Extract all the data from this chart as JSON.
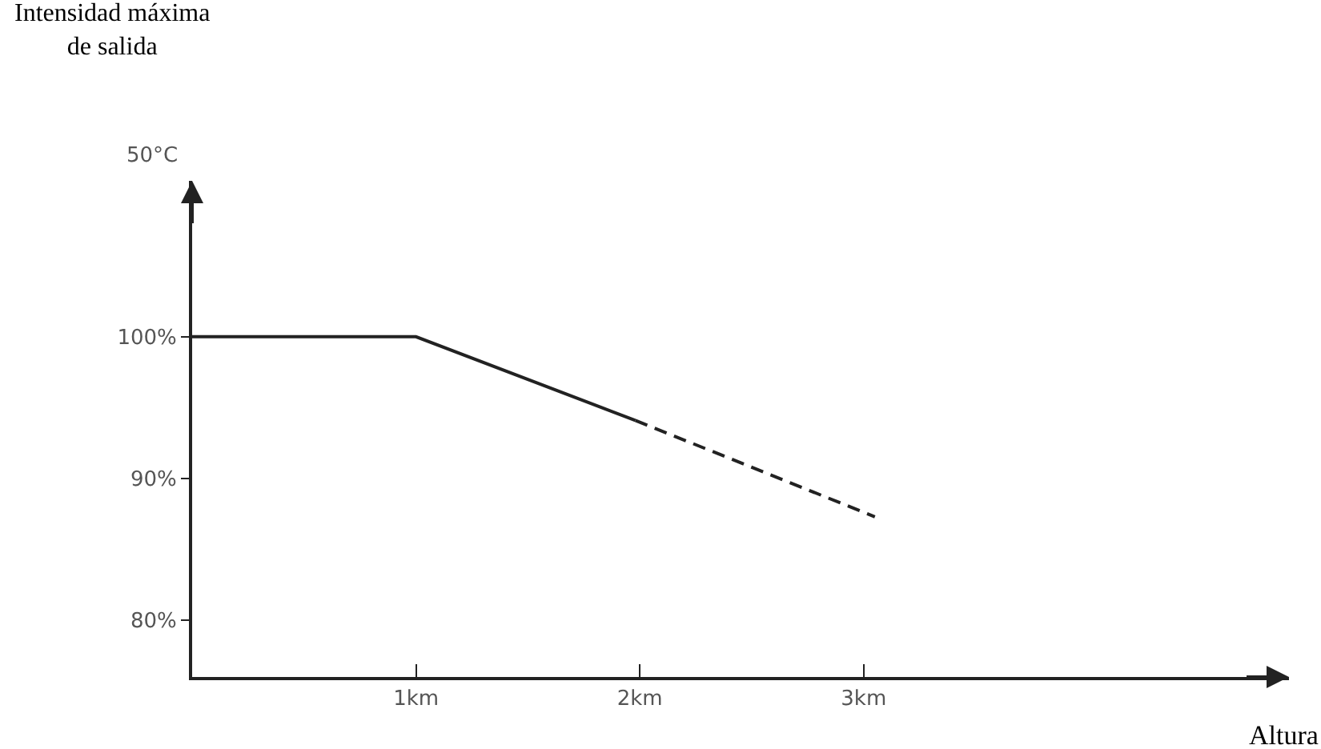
{
  "chart_data": {
    "type": "line",
    "xlabel": "Altura",
    "ylabel": "Intensidad máxima de salida",
    "series": [
      {
        "color": "#222222",
        "line_style": "solid",
        "x": [
          0,
          1,
          1.98
        ],
        "values": [
          100,
          100,
          94.1
        ]
      },
      {
        "color": "#222222",
        "line_style": "dashed",
        "x": [
          1.98,
          3.05
        ],
        "values": [
          94.1,
          87.3
        ]
      }
    ],
    "xlim": [
      0,
      4.9
    ],
    "ylim": [
      76,
      111
    ],
    "xticks": [
      {
        "value": 1,
        "label": "1km"
      },
      {
        "value": 2,
        "label": "2km"
      },
      {
        "value": 3,
        "label": "3km"
      }
    ],
    "yticks": [
      {
        "value": 80,
        "label": "80%"
      },
      {
        "value": 90,
        "label": "90%"
      },
      {
        "value": 100,
        "label": "100%"
      }
    ],
    "annotations": [
      "50°C"
    ],
    "marker": "none"
  }
}
